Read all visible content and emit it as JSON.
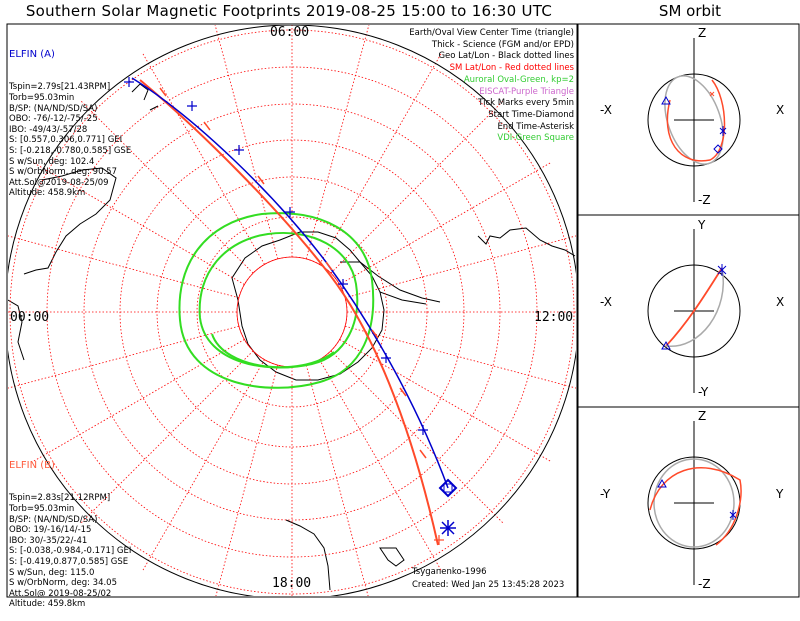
{
  "title": "Southern Solar Magnetic Footprints 2019-08-25 15:00 to 16:30 UTC",
  "sm_title": "SM orbit",
  "time_labels": {
    "top": "06:00",
    "left": "00:00",
    "right": "12:00",
    "bottom": "18:00"
  },
  "elfin_a": {
    "name": "ELFIN (A)",
    "color": "#0000cc",
    "lines": [
      "Tspin=2.79s[21.43RPM]",
      "Torb=95.03min",
      "B/SP: (NA/ND/SD/SA)",
      "OBO: -76/-12/-75/-25",
      "IBO: -49/43/-57/28",
      "S: [0.557,0.306,0.771] GEI",
      "S: [-0.218,-0.780,0.585] GSE",
      "S w/Sun, deg: 102.4",
      "S w/OrbNorm, deg: 90.57",
      "Att.Sol@2019-08-25/09",
      "Altitude: 458.9km"
    ]
  },
  "elfin_b": {
    "name": "ELFIN (B)",
    "color": "#ff5a3c",
    "lines": [
      "Tspin=2.83s[21.12RPM]",
      "Torb=95.03min",
      "B/SP: (NA/ND/SD/SA)",
      "OBO: 19/-16/14/-15",
      "IBO: 30/-35/22/-41",
      "S: [-0.038,-0.984,-0.171] GEI",
      "S: [-0.419,0.877,0.585] GSE",
      "S w/Sun, deg: 115.0",
      "S w/OrbNorm, deg: 34.05",
      "Att.Sol@ 2019-08-25/02",
      "Altitude: 459.8km"
    ]
  },
  "legend": [
    {
      "text": "Earth/Oval View Center Time (triangle)",
      "color": "#000000"
    },
    {
      "text": "Thick - Science (FGM and/or EPD)",
      "color": "#000000"
    },
    {
      "text": "Geo Lat/Lon - Black dotted lines",
      "color": "#000000"
    },
    {
      "text": "SM Lat/Lon - Red dotted lines",
      "color": "#ff0000"
    },
    {
      "text": "Auroral Oval-Green, kp=2",
      "color": "#33cc33"
    },
    {
      "text": "EISCAT-Purple Triangle",
      "color": "#cc66cc"
    },
    {
      "text": "Tick Marks every 5min",
      "color": "#000000"
    },
    {
      "text": "Start Time-Diamond",
      "color": "#000000"
    },
    {
      "text": "End Time-Asterisk",
      "color": "#000000"
    },
    {
      "text": "VDI-Green Square",
      "color": "#33cc33"
    }
  ],
  "credits": {
    "model": "Tsyganenko-1996",
    "created": "Created: Wed Jan 25 13:45:28 2023"
  },
  "orbit_panels": [
    {
      "top": "Z",
      "bottom": "-Z",
      "left": "-X",
      "right": "X"
    },
    {
      "top": "Y",
      "bottom": "-Y",
      "left": "-X",
      "right": "X"
    },
    {
      "top": "Z",
      "bottom": "-Z",
      "left": "-Y",
      "right": "Y"
    }
  ],
  "colors": {
    "trackA": "#0000cc",
    "trackB": "#ff4a2a",
    "oval": "#33dd22",
    "grid": "#ff0000",
    "orbit_gray": "#aaaaaa"
  }
}
